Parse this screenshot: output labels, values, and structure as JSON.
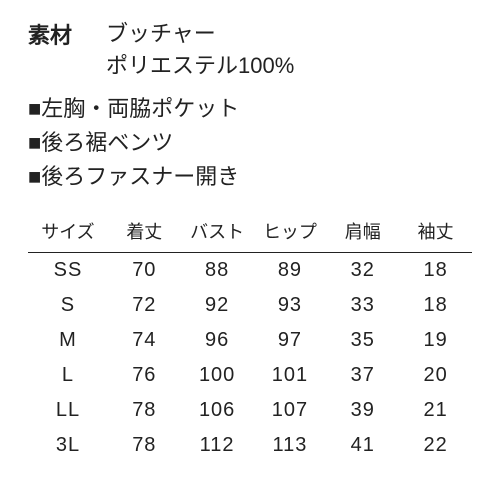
{
  "material": {
    "label": "素材",
    "line1": "ブッチャー",
    "line2": "ポリエステル100%"
  },
  "features": [
    "■左胸・両脇ポケット",
    "■後ろ裾ベンツ",
    "■後ろファスナー開き"
  ],
  "sizeTable": {
    "headers": [
      "サイズ",
      "着丈",
      "バスト",
      "ヒップ",
      "肩幅",
      "袖丈"
    ],
    "rows": [
      [
        "SS",
        "70",
        "88",
        "89",
        "32",
        "18"
      ],
      [
        "S",
        "72",
        "92",
        "93",
        "33",
        "18"
      ],
      [
        "M",
        "74",
        "96",
        "97",
        "35",
        "19"
      ],
      [
        "L",
        "76",
        "100",
        "101",
        "37",
        "20"
      ],
      [
        "LL",
        "78",
        "106",
        "107",
        "39",
        "21"
      ],
      [
        "3L",
        "78",
        "112",
        "113",
        "41",
        "22"
      ]
    ]
  }
}
